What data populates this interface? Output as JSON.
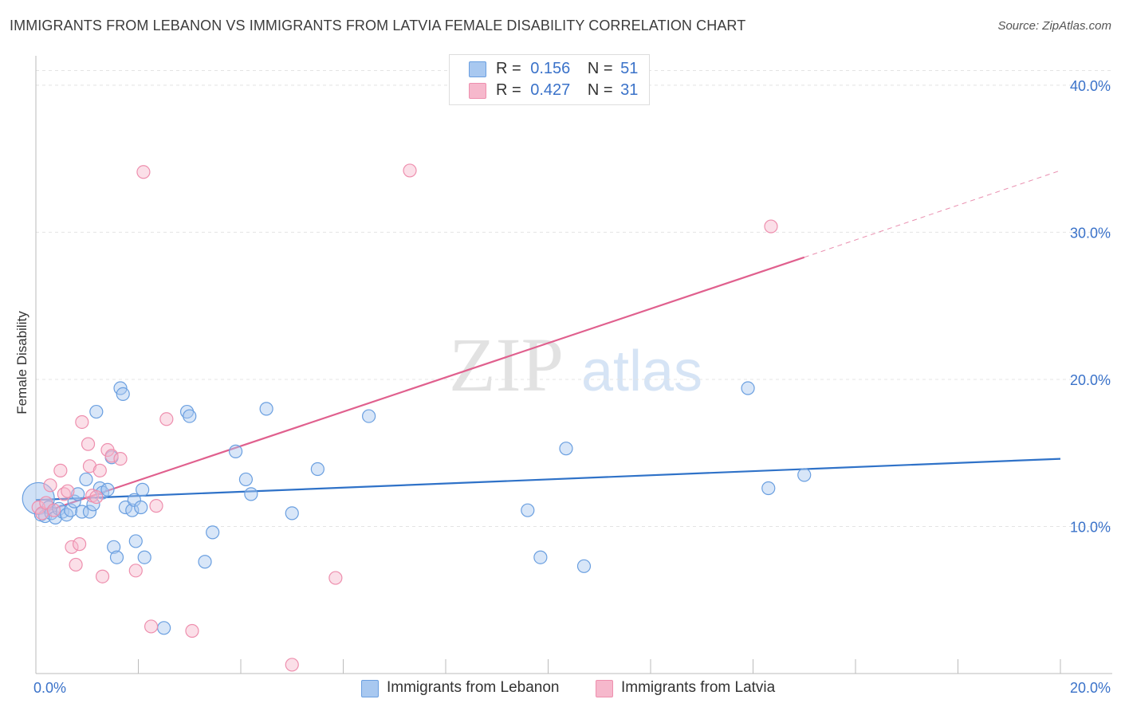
{
  "title": "IMMIGRANTS FROM LEBANON VS IMMIGRANTS FROM LATVIA FEMALE DISABILITY CORRELATION CHART",
  "source": "Source: ZipAtlas.com",
  "watermark": {
    "zip": "ZIP",
    "atlas": "atlas"
  },
  "colors": {
    "lebanon_fill": "#a8c8f0",
    "lebanon_stroke": "#6a9fe0",
    "lebanon_line": "#2f72c8",
    "latvia_fill": "#f6b8cc",
    "latvia_stroke": "#ee8fae",
    "latvia_line": "#e0608e",
    "axis_text": "#3a72c9"
  },
  "legend": {
    "rows": [
      {
        "r_label": "R =",
        "r_value": "0.156",
        "n_label": "N =",
        "n_value": "51"
      },
      {
        "r_label": "R =",
        "r_value": "0.427",
        "n_label": "N =",
        "n_value": "31"
      }
    ],
    "bottom": [
      "Immigrants from Lebanon",
      "Immigrants from Latvia"
    ]
  },
  "chart_data": {
    "type": "scatter",
    "title": "IMMIGRANTS FROM LEBANON VS IMMIGRANTS FROM LATVIA FEMALE DISABILITY CORRELATION CHART",
    "xlabel": "",
    "ylabel": "Female Disability",
    "xlim": [
      0,
      20
    ],
    "ylim": [
      0,
      42
    ],
    "x_tick_labels": [
      "0.0%",
      "20.0%"
    ],
    "y_ticks": [
      10,
      20,
      30,
      40
    ],
    "y_tick_labels": [
      "10.0%",
      "20.0%",
      "30.0%",
      "40.0%"
    ],
    "grid": true,
    "series": [
      {
        "name": "Immigrants from Lebanon",
        "r": 0.156,
        "n": 51,
        "trend": {
          "x": [
            0,
            20
          ],
          "y": [
            11.8,
            14.6
          ],
          "dashed_from": null
        },
        "points": [
          {
            "x": 0.05,
            "y": 11.9,
            "big": true
          },
          {
            "x": 0.1,
            "y": 10.8
          },
          {
            "x": 0.18,
            "y": 10.7
          },
          {
            "x": 0.25,
            "y": 11.3
          },
          {
            "x": 0.3,
            "y": 10.9
          },
          {
            "x": 0.38,
            "y": 10.6
          },
          {
            "x": 0.45,
            "y": 11.2
          },
          {
            "x": 0.52,
            "y": 11.0
          },
          {
            "x": 0.6,
            "y": 10.8
          },
          {
            "x": 0.68,
            "y": 11.1
          },
          {
            "x": 0.75,
            "y": 11.7
          },
          {
            "x": 0.82,
            "y": 12.2
          },
          {
            "x": 0.9,
            "y": 11.0
          },
          {
            "x": 0.98,
            "y": 13.2
          },
          {
            "x": 1.05,
            "y": 11.0
          },
          {
            "x": 1.12,
            "y": 11.5
          },
          {
            "x": 1.18,
            "y": 17.8
          },
          {
            "x": 1.25,
            "y": 12.6
          },
          {
            "x": 1.3,
            "y": 12.3
          },
          {
            "x": 1.4,
            "y": 12.5
          },
          {
            "x": 1.48,
            "y": 14.7
          },
          {
            "x": 1.52,
            "y": 8.6
          },
          {
            "x": 1.58,
            "y": 7.9
          },
          {
            "x": 1.65,
            "y": 19.4
          },
          {
            "x": 1.7,
            "y": 19.0
          },
          {
            "x": 1.75,
            "y": 11.3
          },
          {
            "x": 1.88,
            "y": 11.1
          },
          {
            "x": 1.92,
            "y": 11.8
          },
          {
            "x": 1.95,
            "y": 9.0
          },
          {
            "x": 2.05,
            "y": 11.3
          },
          {
            "x": 2.08,
            "y": 12.5
          },
          {
            "x": 2.12,
            "y": 7.9
          },
          {
            "x": 2.5,
            "y": 3.1
          },
          {
            "x": 2.95,
            "y": 17.8
          },
          {
            "x": 3.0,
            "y": 17.5
          },
          {
            "x": 3.3,
            "y": 7.6
          },
          {
            "x": 3.45,
            "y": 9.6
          },
          {
            "x": 3.9,
            "y": 15.1
          },
          {
            "x": 4.1,
            "y": 13.2
          },
          {
            "x": 4.2,
            "y": 12.2
          },
          {
            "x": 4.5,
            "y": 18.0
          },
          {
            "x": 5.0,
            "y": 10.9
          },
          {
            "x": 5.5,
            "y": 13.9
          },
          {
            "x": 6.5,
            "y": 17.5
          },
          {
            "x": 9.6,
            "y": 11.1
          },
          {
            "x": 9.85,
            "y": 7.9
          },
          {
            "x": 10.35,
            "y": 15.3
          },
          {
            "x": 10.7,
            "y": 7.3
          },
          {
            "x": 13.9,
            "y": 19.4
          },
          {
            "x": 14.3,
            "y": 12.6
          },
          {
            "x": 15.0,
            "y": 13.5
          }
        ]
      },
      {
        "name": "Immigrants from Latvia",
        "r": 0.427,
        "n": 31,
        "trend": {
          "x": [
            0,
            15.0
          ],
          "y": [
            10.8,
            28.3
          ],
          "dashed_to": [
            20,
            34.2
          ]
        },
        "points": [
          {
            "x": 0.05,
            "y": 11.3
          },
          {
            "x": 0.12,
            "y": 10.9
          },
          {
            "x": 0.2,
            "y": 11.6
          },
          {
            "x": 0.28,
            "y": 12.8
          },
          {
            "x": 0.35,
            "y": 11.1
          },
          {
            "x": 0.48,
            "y": 13.8
          },
          {
            "x": 0.55,
            "y": 12.2
          },
          {
            "x": 0.62,
            "y": 12.4
          },
          {
            "x": 0.7,
            "y": 8.6
          },
          {
            "x": 0.78,
            "y": 7.4
          },
          {
            "x": 0.85,
            "y": 8.8
          },
          {
            "x": 0.9,
            "y": 17.1
          },
          {
            "x": 1.02,
            "y": 15.6
          },
          {
            "x": 1.05,
            "y": 14.1
          },
          {
            "x": 1.1,
            "y": 12.1
          },
          {
            "x": 1.18,
            "y": 12.0
          },
          {
            "x": 1.25,
            "y": 13.8
          },
          {
            "x": 1.3,
            "y": 6.6
          },
          {
            "x": 1.4,
            "y": 15.2
          },
          {
            "x": 1.48,
            "y": 14.8
          },
          {
            "x": 1.65,
            "y": 14.6
          },
          {
            "x": 1.95,
            "y": 7.0
          },
          {
            "x": 2.1,
            "y": 34.1
          },
          {
            "x": 2.25,
            "y": 3.2
          },
          {
            "x": 2.35,
            "y": 11.4
          },
          {
            "x": 2.55,
            "y": 17.3
          },
          {
            "x": 3.05,
            "y": 2.9
          },
          {
            "x": 5.0,
            "y": 0.6
          },
          {
            "x": 5.85,
            "y": 6.5
          },
          {
            "x": 7.3,
            "y": 34.2
          },
          {
            "x": 14.35,
            "y": 30.4
          }
        ]
      }
    ]
  }
}
